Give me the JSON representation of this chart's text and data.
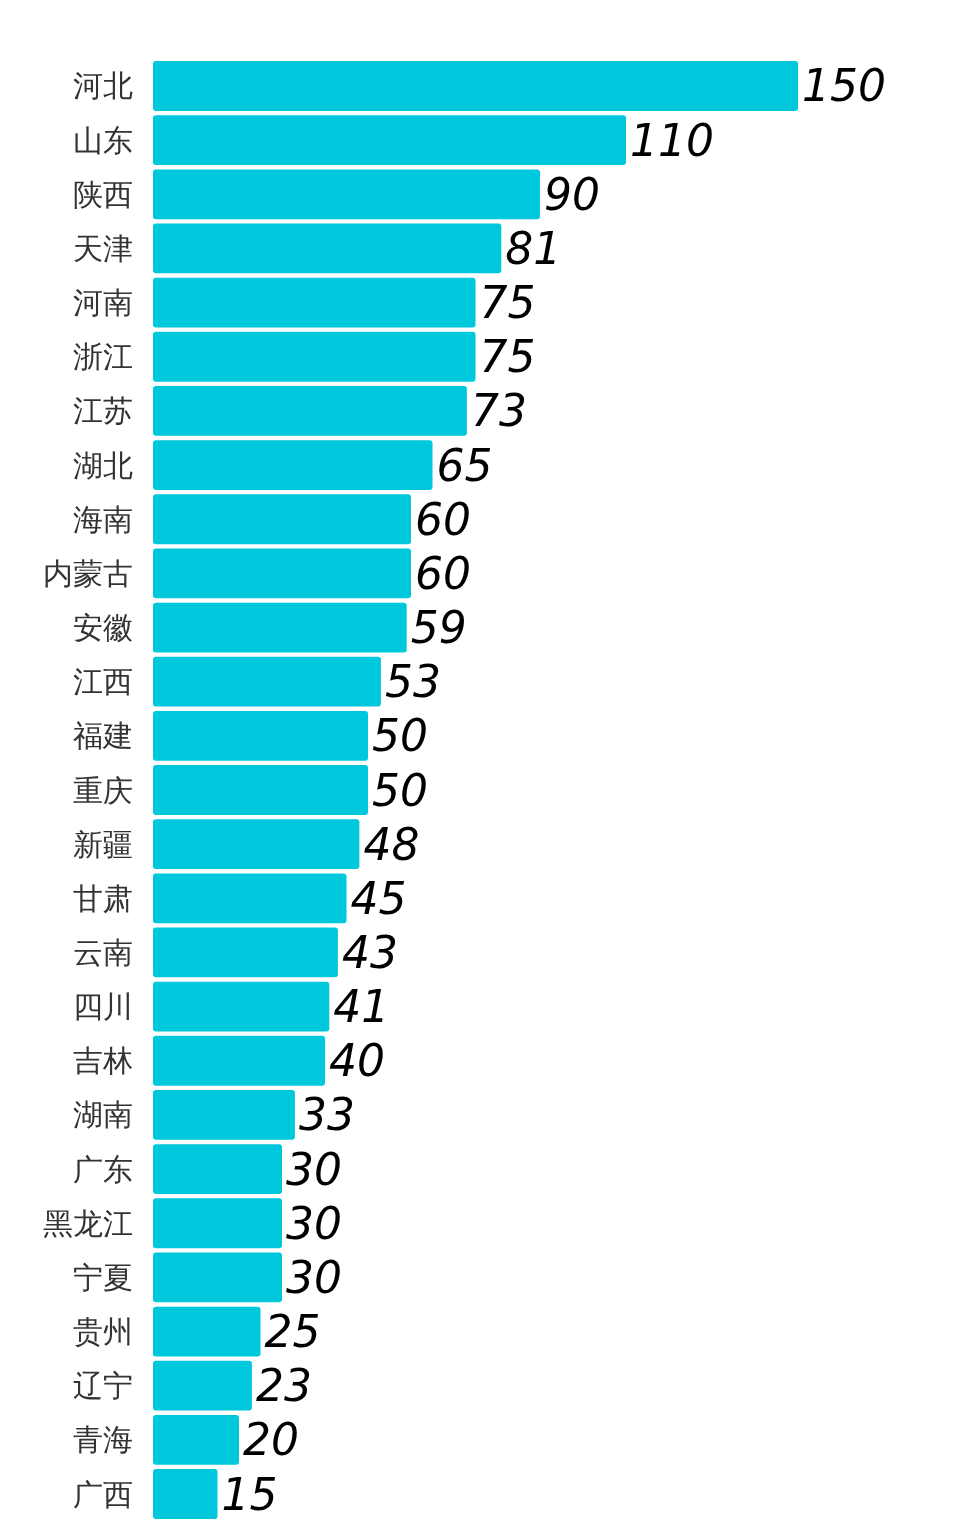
{
  "chart_data": {
    "type": "bar",
    "orientation": "horizontal",
    "data_labels": true,
    "color": "#00c8dc",
    "categories": [
      "河北",
      "山东",
      "陕西",
      "天津",
      "河南",
      "浙江",
      "江苏",
      "湖北",
      "海南",
      "内蒙古",
      "安徽",
      "江西",
      "福建",
      "重庆",
      "新疆",
      "甘肃",
      "云南",
      "四川",
      "吉林",
      "湖南",
      "广东",
      "黑龙江",
      "宁夏",
      "贵州",
      "辽宁",
      "青海",
      "广西"
    ],
    "values": [
      150,
      110,
      90,
      81,
      75,
      75,
      73,
      65,
      60,
      60,
      59,
      53,
      50,
      50,
      48,
      45,
      43,
      41,
      40,
      33,
      30,
      30,
      30,
      25,
      23,
      20,
      15
    ]
  }
}
